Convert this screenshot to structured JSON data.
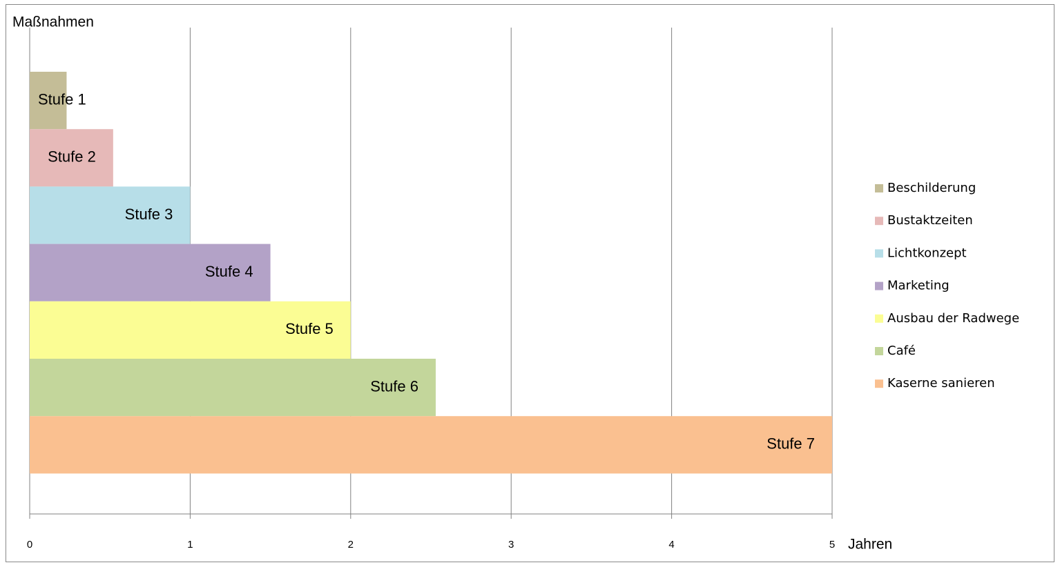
{
  "chart_data": {
    "type": "bar",
    "orientation": "horizontal",
    "y_label": "Maßnahmen",
    "x_label": "Jahren",
    "xlim": [
      0,
      5
    ],
    "xticks": [
      0,
      1,
      2,
      3,
      4,
      5
    ],
    "grid": true,
    "legend": "right",
    "series": [
      {
        "name": "Beschilderung",
        "color": "#c4bd97",
        "value": 0.23,
        "label": "Stufe 1"
      },
      {
        "name": "Bustaktzeiten",
        "color": "#e6b9b8",
        "value": 0.52,
        "label": "Stufe 2"
      },
      {
        "name": "Lichtkonzept",
        "color": "#b7dee8",
        "value": 1,
        "label": "Stufe 3"
      },
      {
        "name": "Marketing",
        "color": "#b3a2c7",
        "value": 1.5,
        "label": "Stufe 4"
      },
      {
        "name": "Ausbau der Radwege",
        "color": "#fbfd94",
        "value": 2,
        "label": "Stufe 5"
      },
      {
        "name": "Café",
        "color": "#c3d69b",
        "value": 2.53,
        "label": "Stufe 6"
      },
      {
        "name": "Kaserne sanieren",
        "color": "#fac090",
        "value": 5,
        "label": "Stufe 7"
      }
    ]
  }
}
